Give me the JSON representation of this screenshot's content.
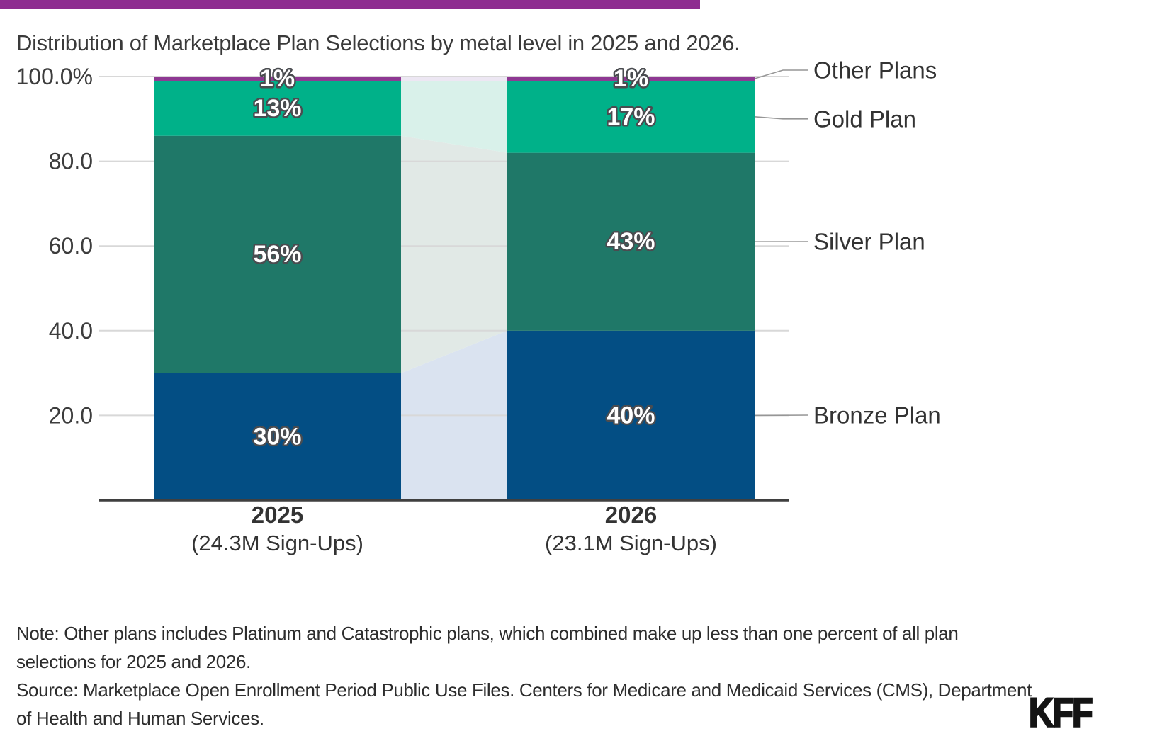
{
  "accent_bar": {
    "color": "#8E2C90"
  },
  "chart_data": {
    "type": "bar",
    "stacked": true,
    "title": "Distribution of Marketplace Plan Selections by metal level in 2025 and 2026.",
    "categories": [
      "2025",
      "2026"
    ],
    "category_sublabels": [
      "(24.3M Sign-Ups)",
      "(23.1M Sign-Ups)"
    ],
    "series": [
      {
        "name": "Bronze Plan",
        "values": [
          30,
          40
        ],
        "labels": [
          "30%",
          "40%"
        ],
        "color": "#034E84",
        "ribbon_color": "#DAE3F0"
      },
      {
        "name": "Silver Plan",
        "values": [
          56,
          43
        ],
        "labels": [
          "56%",
          "43%"
        ],
        "color": "#1F7868",
        "ribbon_color": "#E1E9E6"
      },
      {
        "name": "Gold Plan",
        "values": [
          13,
          17
        ],
        "labels": [
          "13%",
          "17%"
        ],
        "color": "#00B189",
        "ribbon_color": "#D9F1EA"
      },
      {
        "name": "Other Plans",
        "values": [
          1,
          1
        ],
        "labels": [
          "1%",
          "1%"
        ],
        "color": "#8E3892",
        "ribbon_color": "#EDE7F3"
      }
    ],
    "y_axis": {
      "range": [
        0,
        100
      ],
      "ticks": [
        {
          "value": 100,
          "label": "100.0%"
        },
        {
          "value": 80,
          "label": "80.0"
        },
        {
          "value": 60,
          "label": "60.0"
        },
        {
          "value": 40,
          "label": "40.0"
        },
        {
          "value": 20,
          "label": "20.0"
        }
      ]
    },
    "grid": true,
    "legend_position": "right",
    "grid_color": "#D8D8D8",
    "axis_color": "#3F3F3F",
    "leader_color": "#969696"
  },
  "footer": {
    "note_lines": [
      "Note: Other plans includes Platinum and Catastrophic plans, which combined make up less than one percent of all plan",
      "selections for 2025 and 2026."
    ],
    "source_lines": [
      "Source: Marketplace Open Enrollment Period Public Use Files. Centers for Medicare and Medicaid Services (CMS), Department",
      "of Health and Human Services."
    ],
    "logo": "KFF"
  }
}
